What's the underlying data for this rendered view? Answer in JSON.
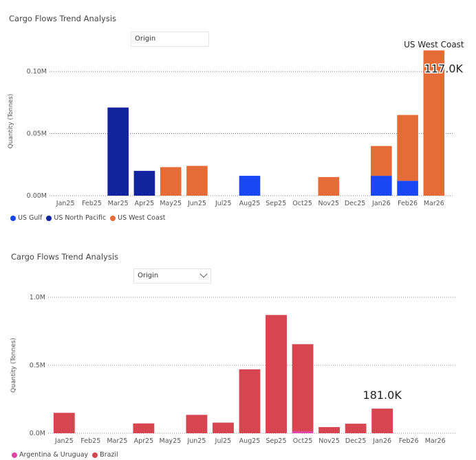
{
  "chart_data": [
    {
      "type": "bar",
      "stacked": true,
      "title": "Cargo Flows Trend Analysis",
      "slicer": {
        "label": "Origin"
      },
      "ylabel": "Quantity (Tonnes)",
      "ylim": [
        0,
        0.12
      ],
      "yticks": [
        {
          "value": 0,
          "label": "0.00M"
        },
        {
          "value": 0.05,
          "label": "0.05M"
        },
        {
          "value": 0.1,
          "label": "0.10M"
        }
      ],
      "categories": [
        "Jan25",
        "Feb25",
        "Mar25",
        "Apr25",
        "May25",
        "Jun25",
        "Jul25",
        "Aug25",
        "Sep25",
        "Oct25",
        "Nov25",
        "Dec25",
        "Jan26",
        "Feb26",
        "Mar26"
      ],
      "series": [
        {
          "name": "US Gulf",
          "color": "#1a47f5",
          "values": [
            0,
            0,
            0,
            0,
            0,
            0,
            0,
            0.016,
            0,
            0,
            0,
            0,
            0.016,
            0.012,
            0
          ]
        },
        {
          "name": "US North Pacific",
          "color": "#12239e",
          "values": [
            0,
            0,
            0.071,
            0.02,
            0,
            0,
            0,
            0,
            0,
            0,
            0,
            0,
            0,
            0,
            0
          ]
        },
        {
          "name": "US West Coast",
          "color": "#e66c37",
          "values": [
            0,
            0,
            0,
            0,
            0.023,
            0.024,
            0,
            0,
            0,
            0,
            0.015,
            0,
            0.024,
            0.053,
            0.117
          ]
        }
      ],
      "annotation": {
        "category": "Mar26",
        "series": "US West Coast",
        "label": "117.0K"
      },
      "legend_position": "bottom-left",
      "grid": true
    },
    {
      "type": "bar",
      "stacked": true,
      "title": "Cargo Flows Trend Analysis",
      "slicer": {
        "label": "Origin"
      },
      "ylabel": "Quantity (Tonnes)",
      "ylim": [
        0,
        1.0
      ],
      "yticks": [
        {
          "value": 0,
          "label": "0.0M"
        },
        {
          "value": 0.5,
          "label": "0.5M"
        },
        {
          "value": 1.0,
          "label": "1.0M"
        }
      ],
      "categories": [
        "Jan25",
        "Feb25",
        "Mar25",
        "Apr25",
        "May25",
        "Jun25",
        "Jul25",
        "Aug25",
        "Sep25",
        "Oct25",
        "Nov25",
        "Dec25",
        "Jan26",
        "Feb26",
        "Mar26"
      ],
      "series": [
        {
          "name": "Argentina & Uruguay",
          "color": "#e044a7",
          "values": [
            0,
            0,
            0,
            0,
            0,
            0,
            0,
            0,
            0,
            0.015,
            0,
            0,
            0,
            0,
            0
          ]
        },
        {
          "name": "Brazil",
          "color": "#d64550",
          "values": [
            0.15,
            0,
            0,
            0.072,
            0,
            0.135,
            0.078,
            0.47,
            0.87,
            0.64,
            0.045,
            0.07,
            0.181,
            0,
            0
          ]
        }
      ],
      "annotation": {
        "category": "Jan26",
        "series": "Brazil",
        "label": "181.0K"
      },
      "legend_position": "bottom-left",
      "grid": true
    }
  ]
}
